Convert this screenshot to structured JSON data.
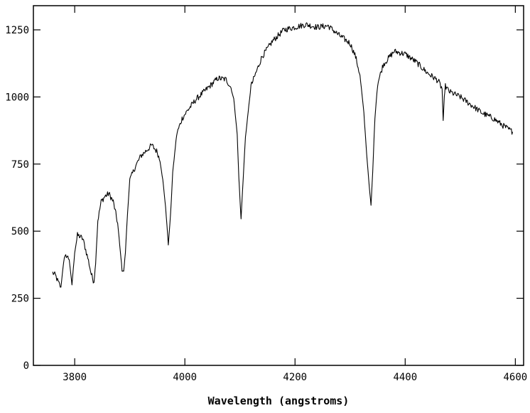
{
  "chart_data": {
    "type": "line",
    "title": "",
    "xlabel": "Wavelength (angstroms)",
    "ylabel": "",
    "xlim": [
      3725,
      4615
    ],
    "ylim": [
      0,
      1340
    ],
    "xticks": [
      3800,
      4000,
      4200,
      4400,
      4600
    ],
    "xtick_labels": [
      "3800",
      "4000",
      "4200",
      "4400",
      "4600"
    ],
    "yticks": [
      0,
      250,
      500,
      750,
      1000,
      1250
    ],
    "ytick_labels": [
      "0",
      "250",
      "500",
      "750",
      "1000",
      "1250"
    ],
    "grid": false,
    "line_color": "#000000",
    "series": [
      {
        "x": [
          3760,
          3765,
          3770,
          3775,
          3780,
          3785,
          3790,
          3795,
          3800,
          3805,
          3810,
          3815,
          3820,
          3825,
          3830,
          3835,
          3838,
          3842,
          3848,
          3855,
          3862,
          3870,
          3878,
          3883,
          3886,
          3889,
          3892,
          3896,
          3900,
          3910,
          3920,
          3930,
          3940,
          3950,
          3955,
          3960,
          3965,
          3970,
          3974,
          3978,
          3985,
          3995,
          4005,
          4020,
          4040,
          4060,
          4075,
          4085,
          4090,
          4095,
          4098,
          4102,
          4106,
          4110,
          4120,
          4140,
          4160,
          4180,
          4200,
          4220,
          4240,
          4260,
          4280,
          4300,
          4310,
          4318,
          4325,
          4330,
          4335,
          4338,
          4341,
          4345,
          4350,
          4360,
          4380,
          4400,
          4420,
          4440,
          4460,
          4467,
          4469,
          4471,
          4473,
          4480,
          4500,
          4520,
          4540,
          4560,
          4580,
          4595
        ],
        "y": [
          345,
          335,
          310,
          290,
          390,
          410,
          395,
          300,
          420,
          485,
          480,
          470,
          430,
          390,
          340,
          310,
          380,
          540,
          610,
          630,
          640,
          610,
          530,
          420,
          360,
          350,
          420,
          570,
          690,
          740,
          780,
          800,
          820,
          795,
          760,
          690,
          590,
          450,
          560,
          720,
          860,
          920,
          950,
          990,
          1030,
          1070,
          1065,
          1030,
          970,
          860,
          700,
          545,
          700,
          850,
          1040,
          1150,
          1210,
          1250,
          1260,
          1270,
          1260,
          1265,
          1230,
          1200,
          1150,
          1080,
          940,
          790,
          660,
          595,
          720,
          920,
          1050,
          1120,
          1170,
          1160,
          1130,
          1090,
          1060,
          1030,
          910,
          1000,
          1040,
          1020,
          1000,
          970,
          940,
          920,
          890,
          870
        ]
      }
    ]
  }
}
